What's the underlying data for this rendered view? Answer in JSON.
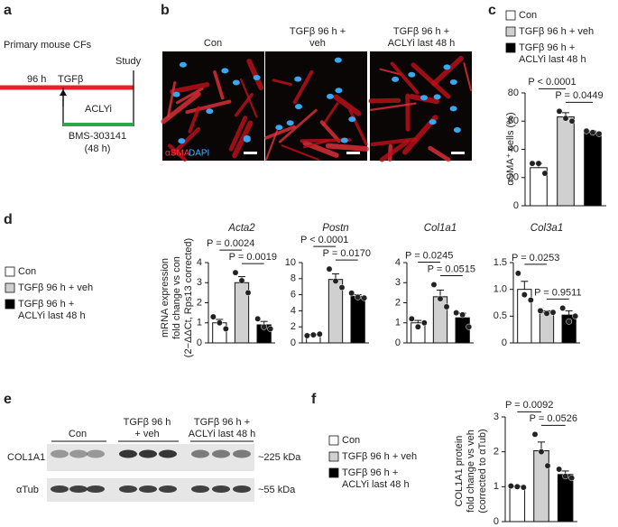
{
  "panel_labels": [
    "a",
    "b",
    "c",
    "d",
    "e",
    "f"
  ],
  "schematic": {
    "title": "Primary mouse CFs",
    "duration": "96 h",
    "stimulus": "TGFβ",
    "endpoint": "Study",
    "treatment": "ACLYi",
    "compound": "BMS-303141",
    "treatment_duration": "(48 h)"
  },
  "images": {
    "headers": [
      [
        "Con"
      ],
      [
        "TGFβ 96 h +",
        "veh"
      ],
      [
        "TGFβ 96 h +",
        "ACLYi last 48 h"
      ]
    ],
    "stain": [
      "αSMA",
      "DAPI"
    ]
  },
  "legends": {
    "c": [
      [
        "Con"
      ],
      [
        "TGFβ 96 h + veh"
      ],
      [
        "TGFβ 96 h +",
        "ACLYi last 48 h"
      ]
    ],
    "d": [
      [
        "Con"
      ],
      [
        "TGFβ 96 h + veh"
      ],
      [
        "TGFβ 96 h +",
        "ACLYi last 48 h"
      ]
    ],
    "f": [
      [
        "Con"
      ],
      [
        "TGFβ 96 h + veh"
      ],
      [
        "TGFβ 96 h +",
        "ACLYi last 48 h"
      ]
    ]
  },
  "blot": {
    "headers": [
      [
        "Con"
      ],
      [
        "TGFβ 96 h",
        "+ veh"
      ],
      [
        "TGFβ 96 h +",
        "ACLYi last 48 h"
      ]
    ],
    "rows": [
      "COL1A1",
      "αTub"
    ],
    "sizes": [
      "~225 kDa",
      "~55 kDa"
    ]
  },
  "chart_data": [
    {
      "type": "bar",
      "ylabel": [
        "αSMA⁺ cells (%)"
      ],
      "categories": [
        null,
        null,
        null
      ],
      "colors": [
        "#ffffff",
        "#d0d0d0",
        "#000000"
      ],
      "values": [
        27,
        63,
        52
      ],
      "errors": [
        3,
        3,
        1
      ],
      "points": [
        [
          30,
          30,
          23
        ],
        [
          67,
          62,
          60
        ],
        [
          53,
          52,
          51
        ]
      ],
      "ylim": [
        0,
        80
      ],
      "yticks": [
        0,
        20,
        40,
        60,
        80
      ],
      "comparisons": [
        "P < 0.0001",
        "P = 0.0449"
      ]
    },
    {
      "type": "bar",
      "title": "Acta2",
      "ylabel": [
        "mRNA expression",
        "fold change vs con",
        "(2−ΔΔCt, Rps13 corrected)"
      ],
      "categories": [
        null,
        null,
        null
      ],
      "colors": [
        "#ffffff",
        "#d0d0d0",
        "#000000"
      ],
      "values": [
        1.0,
        3.0,
        0.9
      ],
      "errors": [
        0.17,
        0.3,
        0.17
      ],
      "points": [
        [
          1.3,
          1.0,
          0.7
        ],
        [
          3.5,
          3.1,
          2.5
        ],
        [
          1.2,
          0.8,
          0.7
        ]
      ],
      "ylim": [
        0,
        4
      ],
      "yticks": [
        0,
        1,
        2,
        3,
        4
      ],
      "comparisons": [
        "P = 0.0024",
        "P = 0.0019"
      ]
    },
    {
      "type": "bar",
      "title": "Postn",
      "categories": [
        null,
        null,
        null
      ],
      "colors": [
        "#ffffff",
        "#d0d0d0",
        "#000000"
      ],
      "values": [
        1.0,
        7.9,
        5.8
      ],
      "errors": [
        0.06,
        0.7,
        0.2
      ],
      "points": [
        [
          0.9,
          1.0,
          1.1
        ],
        [
          9.2,
          7.7,
          6.9
        ],
        [
          6.2,
          5.7,
          5.6
        ]
      ],
      "ylim": [
        0,
        10
      ],
      "yticks": [
        0,
        2,
        4,
        6,
        8,
        10
      ],
      "comparisons": [
        "P < 0.0001",
        "P = 0.0170"
      ]
    },
    {
      "type": "bar",
      "title": "Col1a1",
      "categories": [
        null,
        null,
        null
      ],
      "colors": [
        "#ffffff",
        "#d0d0d0",
        "#000000"
      ],
      "values": [
        1.0,
        2.3,
        1.25
      ],
      "errors": [
        0.12,
        0.33,
        0.23
      ],
      "points": [
        [
          1.2,
          0.8,
          1.0
        ],
        [
          2.9,
          2.2,
          1.8
        ],
        [
          1.5,
          1.4,
          0.8
        ]
      ],
      "ylim": [
        0,
        4
      ],
      "yticks": [
        0,
        1,
        2,
        3,
        4
      ],
      "comparisons": [
        "P = 0.0245",
        "P = 0.0515"
      ]
    },
    {
      "type": "bar",
      "title": "Col3a1",
      "categories": [
        null,
        null,
        null
      ],
      "colors": [
        "#ffffff",
        "#d0d0d0",
        "#000000"
      ],
      "values": [
        1.0,
        0.57,
        0.52
      ],
      "errors": [
        0.15,
        0.03,
        0.08
      ],
      "points": [
        [
          1.3,
          0.9,
          0.8
        ],
        [
          0.6,
          0.55,
          0.57
        ],
        [
          0.65,
          0.4,
          0.5
        ]
      ],
      "ylim": [
        0,
        1.5
      ],
      "yticks": [
        0,
        0.5,
        {
          "value": 1,
          "label": "1.0"
        },
        1.5
      ],
      "comparisons": [
        "P = 0.0253",
        "P = 0.9511"
      ]
    },
    {
      "type": "bar",
      "ylabel": [
        "COL1A1 protein",
        "fold change vs veh",
        "(corrected to αTub)"
      ],
      "categories": [
        null,
        null,
        null
      ],
      "colors": [
        "#ffffff",
        "#d0d0d0",
        "#000000"
      ],
      "values": [
        1.0,
        2.03,
        1.35
      ],
      "errors": [
        0.02,
        0.25,
        0.1
      ],
      "points": [
        [
          1.02,
          1.0,
          0.98
        ],
        [
          2.5,
          2.0,
          1.6
        ],
        [
          1.5,
          1.3,
          1.25
        ]
      ],
      "ylim": [
        0,
        3
      ],
      "yticks": [
        0,
        1,
        2,
        3
      ],
      "comparisons": [
        "P = 0.0092",
        "P = 0.0526"
      ]
    }
  ]
}
